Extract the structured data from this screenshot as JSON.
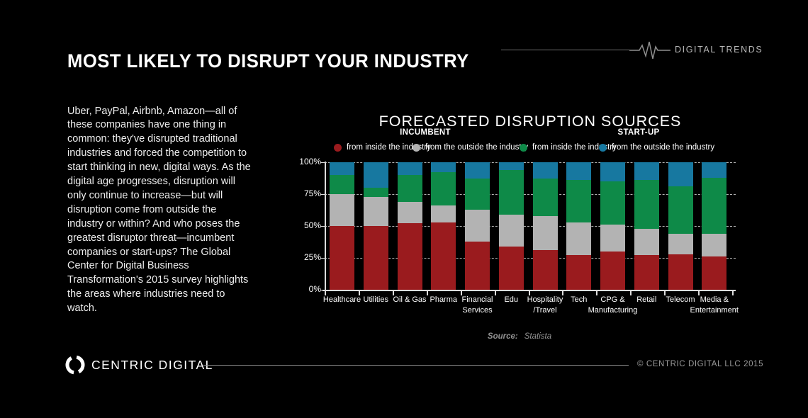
{
  "header": {
    "title": "MOST LIKELY TO DISRUPT YOUR INDUSTRY",
    "tagline": "DIGITAL TRENDS"
  },
  "intro": {
    "text": "Uber, PayPal, Airbnb, Amazon—all of these companies have one thing in common: they've disrupted traditional industries and forced the competition to start thinking in new, digital ways. As the digital age progresses, disruption will only continue to increase—but will disruption come from outside the industry or within? And who poses the greatest disruptor threat—incumbent companies or start-ups? The Global Center for Digital Business Transformation's 2015 survey highlights the areas where industries need to watch."
  },
  "chart_data": {
    "type": "bar",
    "stacked": true,
    "unit": "%",
    "title": "FORECASTED DISRUPTION SOURCES",
    "categories": [
      "Healthcare",
      "Utilities",
      "Oil & Gas",
      "Pharma",
      "Financial\nServices",
      "Edu",
      "Hospitality\n/Travel",
      "Tech",
      "CPG &\nManufacturing",
      "Retail",
      "Telecom",
      "Media &\nEntertainment"
    ],
    "legend_groups": [
      {
        "label": "INCUMBENT"
      },
      {
        "label": "START-UP"
      }
    ],
    "series": [
      {
        "name": "Incumbent from inside the industry",
        "legend": "from inside the industry",
        "group": "INCUMBENT",
        "color": "#9A1B1E",
        "values": [
          50,
          50,
          52,
          53,
          38,
          34,
          31,
          27,
          30,
          27,
          28,
          26
        ]
      },
      {
        "name": "Incumbent from the outside the industry",
        "legend": "from the outside the industry",
        "group": "INCUMBENT",
        "color": "#B3B3B3",
        "values": [
          25,
          23,
          17,
          13,
          25,
          25,
          27,
          26,
          21,
          21,
          16,
          18
        ]
      },
      {
        "name": "Start-up from inside the industry",
        "legend": "from inside the industry",
        "group": "START-UP",
        "color": "#0E8A48",
        "values": [
          15,
          7,
          21,
          26,
          24,
          35,
          29,
          33,
          34,
          38,
          37,
          44
        ]
      },
      {
        "name": "Start-up from the outside the industry",
        "legend": "from the outside the industry",
        "group": "START-UP",
        "color": "#1778A0",
        "values": [
          10,
          20,
          10,
          8,
          13,
          6,
          13,
          14,
          15,
          14,
          19,
          12
        ]
      }
    ],
    "y_ticks": [
      "0%",
      "25%",
      "50%",
      "75%",
      "100%"
    ],
    "ylim": [
      0,
      100
    ],
    "grid": "dashed horizontal",
    "legend_position": "top",
    "source_label": "Source:",
    "source_value": "Statista"
  },
  "footer": {
    "logo_text": "CENTRIC DIGITAL",
    "copyright": "© CENTRIC DIGITAL LLC 2015"
  }
}
